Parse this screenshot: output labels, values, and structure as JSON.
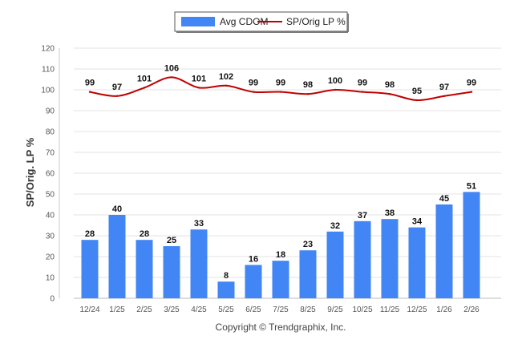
{
  "chart_data": {
    "type": "bar+line",
    "title": "",
    "ylabel": "SP/Orig. LP %",
    "ylim": [
      0,
      120
    ],
    "yticks": [
      0,
      10,
      20,
      30,
      40,
      50,
      60,
      70,
      80,
      90,
      100,
      110,
      120
    ],
    "categories": [
      "12/24",
      "1/25",
      "2/25",
      "3/25",
      "4/25",
      "5/25",
      "6/25",
      "7/25",
      "8/25",
      "9/25",
      "10/25",
      "11/25",
      "12/25",
      "1/26",
      "2/26"
    ],
    "series": [
      {
        "name": "Avg CDOM",
        "type": "bar",
        "color": "#4285f4",
        "values": [
          28,
          40,
          28,
          25,
          33,
          8,
          16,
          18,
          23,
          32,
          37,
          38,
          34,
          45,
          51
        ]
      },
      {
        "name": "SP/Orig LP %",
        "type": "line",
        "color": "#c00000",
        "values": [
          99,
          97,
          101,
          106,
          101,
          102,
          99,
          99,
          98,
          100,
          99,
          98,
          95,
          97,
          99
        ]
      }
    ],
    "legend_position": "top-center",
    "grid": true
  },
  "footer": {
    "copyright": "Copyright © Trendgraphix, Inc."
  }
}
